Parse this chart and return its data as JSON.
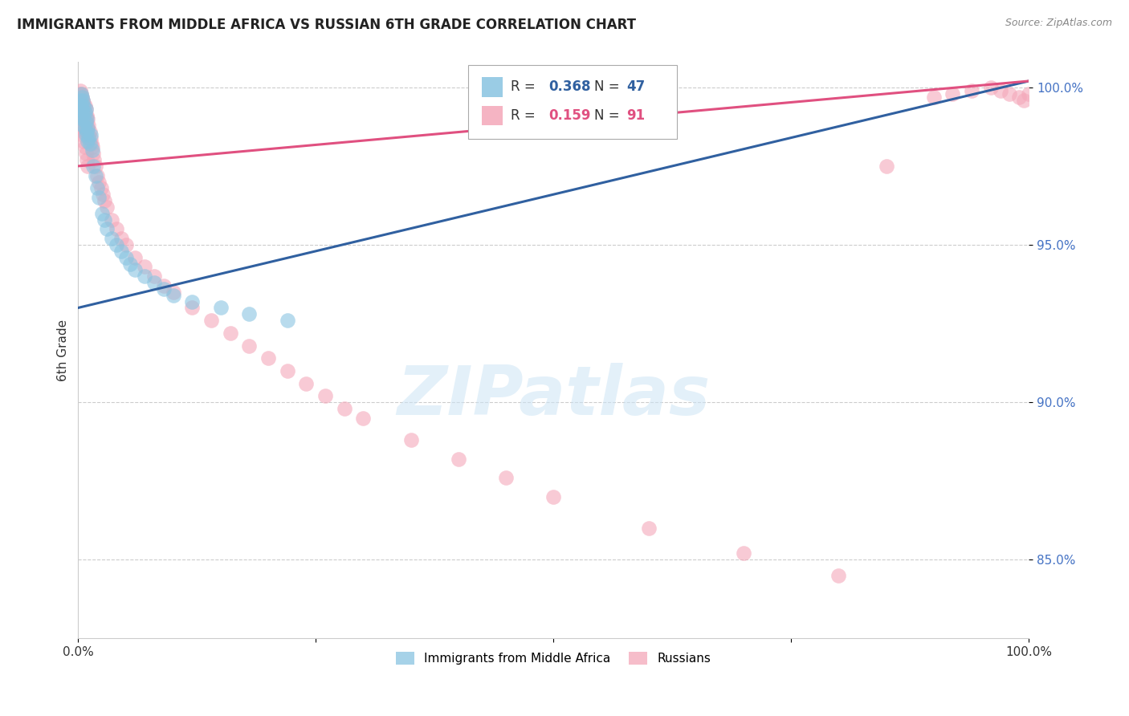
{
  "title": "IMMIGRANTS FROM MIDDLE AFRICA VS RUSSIAN 6TH GRADE CORRELATION CHART",
  "source": "Source: ZipAtlas.com",
  "ylabel": "6th Grade",
  "xlim": [
    0.0,
    1.0
  ],
  "ylim": [
    0.825,
    1.008
  ],
  "yticks": [
    0.85,
    0.9,
    0.95,
    1.0
  ],
  "ytick_labels": [
    "85.0%",
    "90.0%",
    "95.0%",
    "100.0%"
  ],
  "grid_color": "#cccccc",
  "background_color": "#ffffff",
  "blue_color": "#89c4e1",
  "pink_color": "#f4a7b9",
  "blue_line_color": "#3060a0",
  "pink_line_color": "#e05080",
  "blue_R": 0.368,
  "blue_N": 47,
  "pink_R": 0.159,
  "pink_N": 91,
  "legend_label_blue": "Immigrants from Middle Africa",
  "legend_label_pink": "Russians",
  "watermark": "ZIPatlas",
  "blue_scatter_x": [
    0.002,
    0.002,
    0.003,
    0.003,
    0.003,
    0.004,
    0.004,
    0.004,
    0.005,
    0.005,
    0.005,
    0.006,
    0.006,
    0.007,
    0.007,
    0.008,
    0.008,
    0.008,
    0.009,
    0.009,
    0.01,
    0.01,
    0.011,
    0.012,
    0.013,
    0.015,
    0.016,
    0.018,
    0.02,
    0.022,
    0.025,
    0.028,
    0.03,
    0.035,
    0.04,
    0.045,
    0.05,
    0.055,
    0.06,
    0.07,
    0.08,
    0.09,
    0.1,
    0.12,
    0.15,
    0.18,
    0.22
  ],
  "blue_scatter_y": [
    0.993,
    0.996,
    0.998,
    0.994,
    0.991,
    0.997,
    0.993,
    0.99,
    0.996,
    0.992,
    0.988,
    0.994,
    0.99,
    0.992,
    0.987,
    0.993,
    0.989,
    0.985,
    0.99,
    0.986,
    0.987,
    0.983,
    0.984,
    0.982,
    0.985,
    0.98,
    0.975,
    0.972,
    0.968,
    0.965,
    0.96,
    0.958,
    0.955,
    0.952,
    0.95,
    0.948,
    0.946,
    0.944,
    0.942,
    0.94,
    0.938,
    0.936,
    0.934,
    0.932,
    0.93,
    0.928,
    0.926
  ],
  "pink_scatter_x": [
    0.001,
    0.001,
    0.002,
    0.002,
    0.002,
    0.003,
    0.003,
    0.003,
    0.003,
    0.004,
    0.004,
    0.004,
    0.004,
    0.005,
    0.005,
    0.005,
    0.005,
    0.006,
    0.006,
    0.006,
    0.006,
    0.007,
    0.007,
    0.007,
    0.008,
    0.008,
    0.008,
    0.009,
    0.009,
    0.01,
    0.01,
    0.011,
    0.011,
    0.012,
    0.013,
    0.014,
    0.015,
    0.016,
    0.017,
    0.018,
    0.02,
    0.022,
    0.024,
    0.026,
    0.028,
    0.03,
    0.035,
    0.04,
    0.045,
    0.05,
    0.06,
    0.07,
    0.08,
    0.09,
    0.1,
    0.12,
    0.14,
    0.16,
    0.18,
    0.2,
    0.22,
    0.24,
    0.26,
    0.28,
    0.3,
    0.35,
    0.4,
    0.45,
    0.5,
    0.6,
    0.7,
    0.8,
    0.85,
    0.9,
    0.92,
    0.94,
    0.96,
    0.97,
    0.98,
    0.99,
    0.995,
    1.0,
    0.002,
    0.003,
    0.004,
    0.005,
    0.006,
    0.007,
    0.008,
    0.009,
    0.01
  ],
  "pink_scatter_y": [
    0.998,
    0.995,
    0.999,
    0.996,
    0.993,
    0.998,
    0.995,
    0.992,
    0.989,
    0.997,
    0.994,
    0.991,
    0.988,
    0.996,
    0.993,
    0.99,
    0.987,
    0.995,
    0.992,
    0.989,
    0.986,
    0.994,
    0.991,
    0.988,
    0.993,
    0.99,
    0.987,
    0.991,
    0.988,
    0.99,
    0.987,
    0.988,
    0.985,
    0.986,
    0.984,
    0.982,
    0.981,
    0.979,
    0.977,
    0.975,
    0.972,
    0.97,
    0.968,
    0.966,
    0.964,
    0.962,
    0.958,
    0.955,
    0.952,
    0.95,
    0.946,
    0.943,
    0.94,
    0.937,
    0.935,
    0.93,
    0.926,
    0.922,
    0.918,
    0.914,
    0.91,
    0.906,
    0.902,
    0.898,
    0.895,
    0.888,
    0.882,
    0.876,
    0.87,
    0.86,
    0.852,
    0.845,
    0.975,
    0.997,
    0.998,
    0.999,
    1.0,
    0.999,
    0.998,
    0.997,
    0.996,
    0.998,
    0.991,
    0.989,
    0.987,
    0.985,
    0.983,
    0.981,
    0.979,
    0.977,
    0.975
  ],
  "blue_trend_x0": 0.0,
  "blue_trend_y0": 0.93,
  "blue_trend_x1": 1.0,
  "blue_trend_y1": 1.002,
  "pink_trend_x0": 0.0,
  "pink_trend_y0": 0.975,
  "pink_trend_x1": 1.0,
  "pink_trend_y1": 1.002
}
